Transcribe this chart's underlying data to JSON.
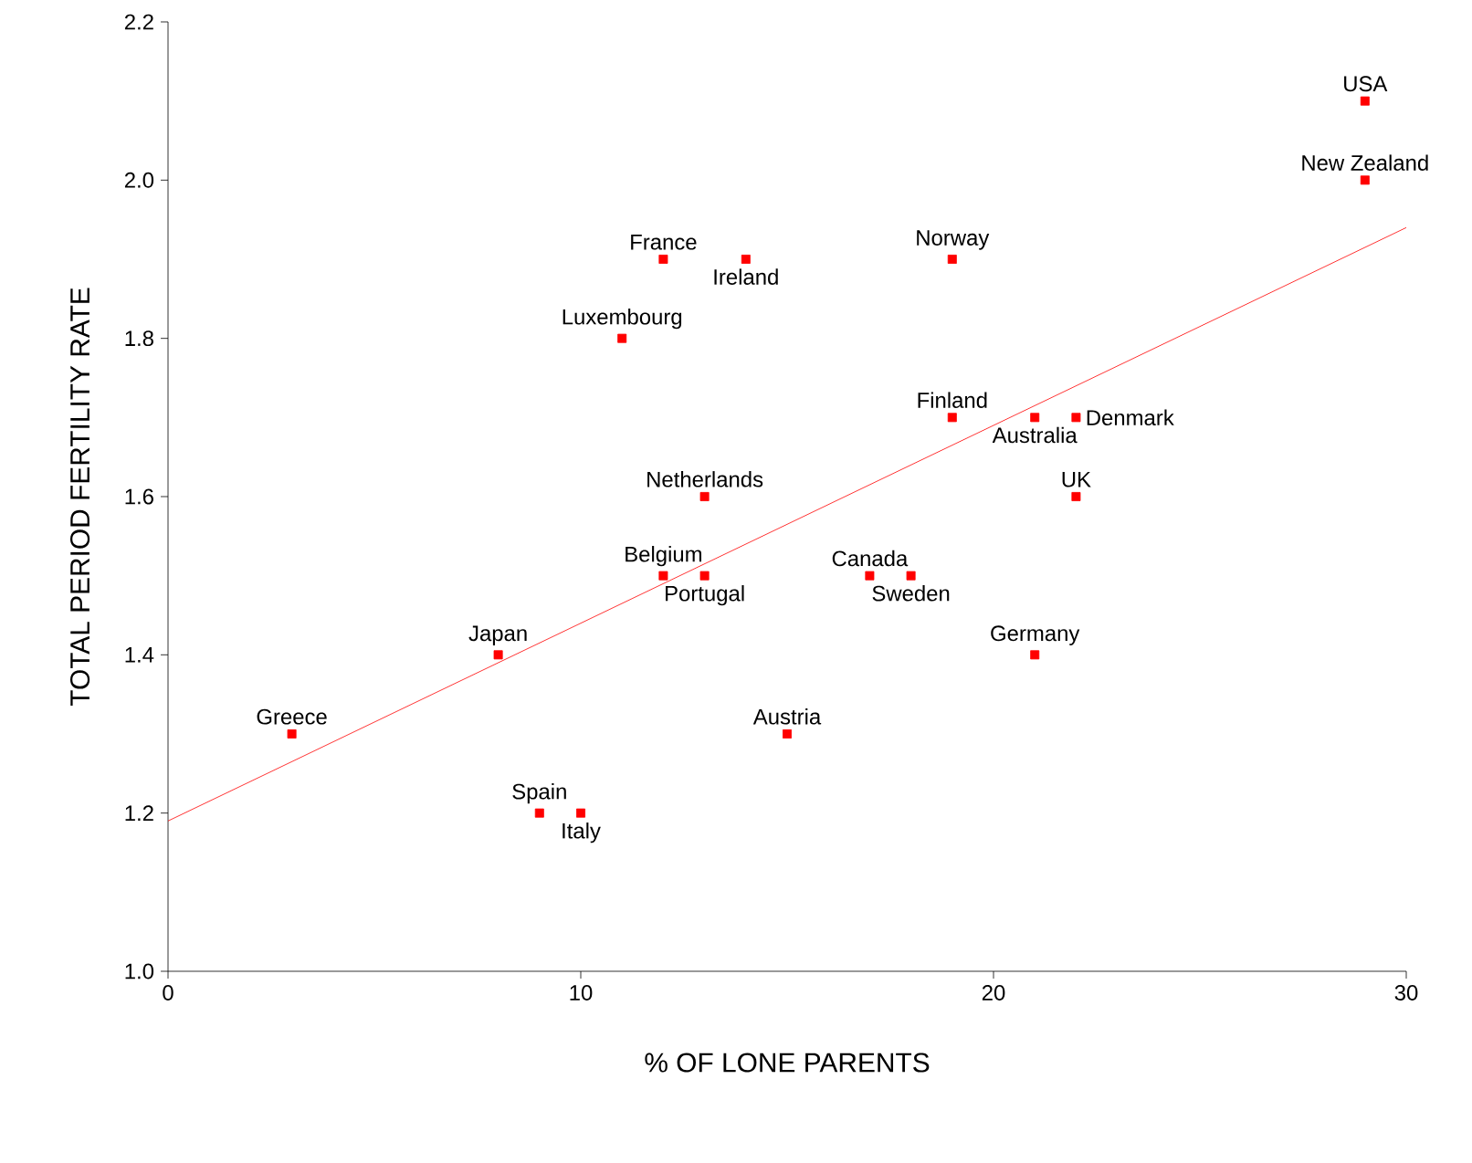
{
  "chart_data": {
    "type": "scatter",
    "xlabel": "% OF LONE PARENTS",
    "ylabel": "TOTAL PERIOD FERTILITY RATE",
    "xlim": [
      0,
      30
    ],
    "ylim": [
      1.0,
      2.2
    ],
    "xticks": [
      0,
      10,
      20,
      30
    ],
    "yticks": [
      {
        "value": 1.0,
        "label": "1.0"
      },
      {
        "value": 1.2,
        "label": "1.2"
      },
      {
        "value": 1.4,
        "label": "1.4"
      },
      {
        "value": 1.6,
        "label": "1.6"
      },
      {
        "value": 1.8,
        "label": "1.8"
      },
      {
        "value": 2.0,
        "label": "2.0"
      },
      {
        "value": 2.2,
        "label": "2.2"
      }
    ],
    "grid": false,
    "series": [
      {
        "marker": "square",
        "color": "#ff0000",
        "x": [
          29,
          29,
          12,
          14,
          19,
          11,
          19,
          21,
          22,
          13,
          22,
          12,
          13,
          17,
          18,
          8,
          21,
          3,
          15,
          9,
          10
        ],
        "values": [
          2.1,
          2.0,
          1.9,
          1.9,
          1.9,
          1.8,
          1.7,
          1.7,
          1.7,
          1.6,
          1.6,
          1.5,
          1.5,
          1.5,
          1.5,
          1.4,
          1.4,
          1.3,
          1.3,
          1.2,
          1.2
        ]
      },
      {
        "type": "line",
        "color": "#ff0000",
        "x": [
          0,
          30
        ],
        "values": [
          1.19,
          1.94
        ]
      }
    ],
    "annotations": [
      {
        "text": "USA",
        "x": 29,
        "y": 2.1
      },
      {
        "text": "New Zealand",
        "x": 29,
        "y": 2.0
      },
      {
        "text": "France",
        "x": 12,
        "y": 1.9
      },
      {
        "text": "Ireland",
        "x": 14,
        "y": 1.9
      },
      {
        "text": "Norway",
        "x": 19,
        "y": 1.9
      },
      {
        "text": "Luxembourg",
        "x": 11,
        "y": 1.8
      },
      {
        "text": "Finland",
        "x": 19,
        "y": 1.7
      },
      {
        "text": "Australia",
        "x": 21,
        "y": 1.7
      },
      {
        "text": "Denmark",
        "x": 22,
        "y": 1.7
      },
      {
        "text": "Netherlands",
        "x": 13,
        "y": 1.6
      },
      {
        "text": "UK",
        "x": 22,
        "y": 1.6
      },
      {
        "text": "Belgium",
        "x": 12,
        "y": 1.5
      },
      {
        "text": "Portugal",
        "x": 13,
        "y": 1.5
      },
      {
        "text": "Canada",
        "x": 17,
        "y": 1.5
      },
      {
        "text": "Sweden",
        "x": 18,
        "y": 1.5
      },
      {
        "text": "Japan",
        "x": 8,
        "y": 1.4
      },
      {
        "text": "Germany",
        "x": 21,
        "y": 1.4
      },
      {
        "text": "Greece",
        "x": 3,
        "y": 1.3
      },
      {
        "text": "Austria",
        "x": 15,
        "y": 1.3
      },
      {
        "text": "Spain",
        "x": 9,
        "y": 1.2
      },
      {
        "text": "Italy",
        "x": 10,
        "y": 1.2
      }
    ]
  }
}
